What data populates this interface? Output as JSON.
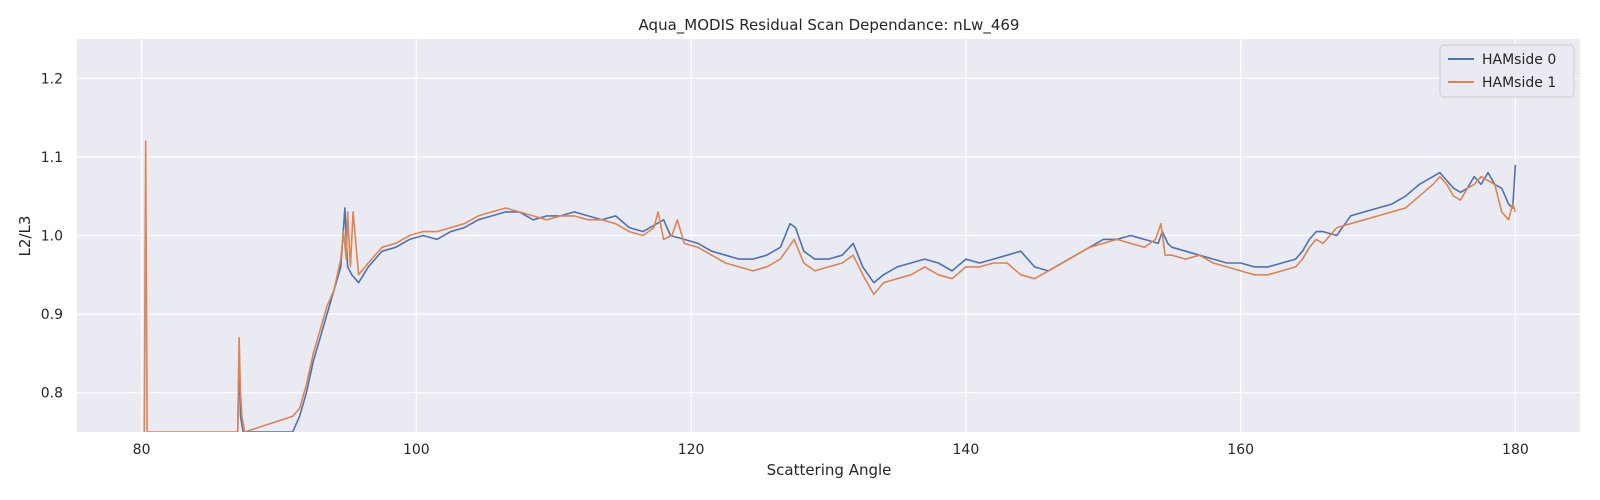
{
  "chart_data": {
    "type": "line",
    "title": "Aqua_MODIS Residual Scan Dependance: nLw_469",
    "xlabel": "Scattering Angle",
    "ylabel": "L2/L3",
    "xlim": [
      75.3,
      184.7
    ],
    "ylim": [
      0.75,
      1.25
    ],
    "xticks": [
      80,
      100,
      120,
      140,
      160,
      180
    ],
    "yticks": [
      0.8,
      0.9,
      1.0,
      1.1,
      1.2
    ],
    "xtick_labels": [
      "80",
      "100",
      "120",
      "140",
      "160",
      "180"
    ],
    "ytick_labels": [
      "0.8",
      "0.9",
      "1.0",
      "1.1",
      "1.2"
    ],
    "grid": true,
    "legend_position": "top-right",
    "background": "#eaeaf2",
    "series": [
      {
        "name": "HAMside 0",
        "color": "#4c72b0",
        "x": [
          87.0,
          87.1,
          87.2,
          87.4,
          91.0,
          91.5,
          92.0,
          92.5,
          93.0,
          93.5,
          94.0,
          94.5,
          94.8,
          95.0,
          95.3,
          95.8,
          96.5,
          97.5,
          98.5,
          99.5,
          100.5,
          101.5,
          102.5,
          103.5,
          104.5,
          105.5,
          106.5,
          107.5,
          108.5,
          109.5,
          110.5,
          111.5,
          112.5,
          113.5,
          114.5,
          115.5,
          116.5,
          117.5,
          118.0,
          118.5,
          119.5,
          120.5,
          121.5,
          122.5,
          123.5,
          124.5,
          125.5,
          126.5,
          127.2,
          127.6,
          128.2,
          129.0,
          130.0,
          131.0,
          131.8,
          132.5,
          133.3,
          134.0,
          135.0,
          136.0,
          137.0,
          138.0,
          139.0,
          140.0,
          141.0,
          142.0,
          143.0,
          144.0,
          145.0,
          146.0,
          147.0,
          148.0,
          149.0,
          150.0,
          151.0,
          152.0,
          153.0,
          154.0,
          154.3,
          154.7,
          155.0,
          156.0,
          157.0,
          158.0,
          159.0,
          160.0,
          161.0,
          162.0,
          163.0,
          164.0,
          164.5,
          165.0,
          165.5,
          166.0,
          167.0,
          168.0,
          169.0,
          170.0,
          171.0,
          172.0,
          173.0,
          174.0,
          174.5,
          175.0,
          175.5,
          176.0,
          176.5,
          177.0,
          177.5,
          178.0,
          178.5,
          179.0,
          179.5,
          179.8,
          180.0
        ],
        "y": [
          0.75,
          0.85,
          0.77,
          0.75,
          0.75,
          0.77,
          0.8,
          0.84,
          0.87,
          0.9,
          0.93,
          0.96,
          1.035,
          0.96,
          0.95,
          0.94,
          0.96,
          0.98,
          0.985,
          0.995,
          1.0,
          0.995,
          1.005,
          1.01,
          1.02,
          1.025,
          1.03,
          1.03,
          1.02,
          1.025,
          1.025,
          1.03,
          1.025,
          1.02,
          1.025,
          1.01,
          1.005,
          1.015,
          1.02,
          1.0,
          0.995,
          0.99,
          0.98,
          0.975,
          0.97,
          0.97,
          0.975,
          0.985,
          1.015,
          1.01,
          0.98,
          0.97,
          0.97,
          0.975,
          0.99,
          0.96,
          0.94,
          0.95,
          0.96,
          0.965,
          0.97,
          0.965,
          0.955,
          0.97,
          0.965,
          0.97,
          0.975,
          0.98,
          0.96,
          0.955,
          0.965,
          0.975,
          0.985,
          0.995,
          0.995,
          1.0,
          0.995,
          0.99,
          1.005,
          0.99,
          0.985,
          0.98,
          0.975,
          0.97,
          0.965,
          0.965,
          0.96,
          0.96,
          0.965,
          0.97,
          0.98,
          0.995,
          1.005,
          1.005,
          1.0,
          1.025,
          1.03,
          1.035,
          1.04,
          1.05,
          1.065,
          1.075,
          1.08,
          1.07,
          1.06,
          1.055,
          1.06,
          1.075,
          1.065,
          1.08,
          1.065,
          1.06,
          1.04,
          1.035,
          1.09
        ]
      },
      {
        "name": "HAMside 1",
        "color": "#dd8452",
        "x": [
          80.2,
          80.3,
          80.4,
          87.0,
          87.1,
          87.2,
          87.3,
          87.5,
          91.0,
          91.5,
          92.0,
          92.5,
          93.0,
          93.5,
          94.0,
          94.5,
          94.7,
          94.9,
          95.0,
          95.2,
          95.4,
          95.8,
          96.5,
          97.5,
          98.5,
          99.5,
          100.5,
          101.5,
          102.5,
          103.5,
          104.5,
          105.5,
          106.5,
          107.5,
          108.5,
          109.5,
          110.5,
          111.5,
          112.5,
          113.5,
          114.5,
          115.5,
          116.5,
          117.3,
          117.6,
          118.0,
          118.6,
          119.0,
          119.5,
          120.5,
          121.5,
          122.5,
          123.5,
          124.5,
          125.5,
          126.5,
          127.5,
          128.2,
          129.0,
          130.0,
          131.0,
          131.8,
          132.5,
          133.3,
          134.0,
          135.0,
          136.0,
          137.0,
          138.0,
          139.0,
          140.0,
          141.0,
          142.0,
          143.0,
          144.0,
          145.0,
          146.0,
          147.0,
          148.0,
          149.0,
          150.0,
          151.0,
          152.0,
          153.0,
          153.8,
          154.2,
          154.5,
          155.0,
          156.0,
          157.0,
          158.0,
          159.0,
          160.0,
          161.0,
          162.0,
          163.0,
          164.0,
          164.5,
          165.0,
          165.5,
          166.0,
          167.0,
          168.0,
          169.0,
          170.0,
          171.0,
          172.0,
          173.0,
          174.0,
          174.5,
          175.0,
          175.5,
          176.0,
          176.5,
          177.0,
          177.5,
          178.0,
          178.5,
          179.0,
          179.5,
          179.8,
          180.0
        ],
        "y": [
          0.75,
          1.12,
          0.75,
          0.75,
          0.87,
          0.8,
          0.77,
          0.75,
          0.77,
          0.78,
          0.81,
          0.85,
          0.88,
          0.91,
          0.93,
          0.97,
          1.005,
          0.97,
          1.03,
          0.96,
          1.03,
          0.95,
          0.965,
          0.985,
          0.99,
          1.0,
          1.005,
          1.005,
          1.01,
          1.015,
          1.025,
          1.03,
          1.035,
          1.03,
          1.025,
          1.02,
          1.025,
          1.025,
          1.02,
          1.02,
          1.015,
          1.005,
          1.0,
          1.01,
          1.03,
          0.995,
          1.0,
          1.02,
          0.99,
          0.985,
          0.975,
          0.965,
          0.96,
          0.955,
          0.96,
          0.97,
          0.995,
          0.965,
          0.955,
          0.96,
          0.965,
          0.975,
          0.95,
          0.925,
          0.94,
          0.945,
          0.95,
          0.96,
          0.95,
          0.945,
          0.96,
          0.96,
          0.965,
          0.965,
          0.95,
          0.945,
          0.955,
          0.965,
          0.975,
          0.985,
          0.99,
          0.995,
          0.99,
          0.985,
          0.995,
          1.015,
          0.975,
          0.975,
          0.97,
          0.975,
          0.965,
          0.96,
          0.955,
          0.95,
          0.95,
          0.955,
          0.96,
          0.97,
          0.985,
          0.995,
          0.99,
          1.01,
          1.015,
          1.02,
          1.025,
          1.03,
          1.035,
          1.05,
          1.065,
          1.075,
          1.065,
          1.05,
          1.045,
          1.06,
          1.065,
          1.075,
          1.07,
          1.065,
          1.03,
          1.02,
          1.04,
          1.03
        ]
      }
    ]
  }
}
